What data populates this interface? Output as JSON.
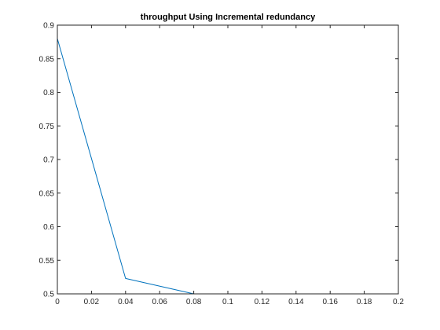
{
  "chart_data": {
    "type": "line",
    "title": "throughput Using Incremental redundancy",
    "xlabel": "",
    "ylabel": "",
    "xlim": [
      0,
      0.2
    ],
    "ylim": [
      0.5,
      0.9
    ],
    "x_ticks": [
      0,
      0.02,
      0.04,
      0.06,
      0.08,
      0.1,
      0.12,
      0.14,
      0.16,
      0.18,
      0.2
    ],
    "x_tick_labels": [
      "0",
      "0.02",
      "0.04",
      "0.06",
      "0.08",
      "0.1",
      "0.12",
      "0.14",
      "0.16",
      "0.18",
      "0.2"
    ],
    "y_ticks": [
      0.5,
      0.55,
      0.6,
      0.65,
      0.7,
      0.75,
      0.8,
      0.85,
      0.9
    ],
    "y_tick_labels": [
      "0.5",
      "0.55",
      "0.6",
      "0.65",
      "0.7",
      "0.75",
      "0.8",
      "0.85",
      "0.9"
    ],
    "grid": false,
    "box": true,
    "series": [
      {
        "x": [
          0,
          0.04,
          0.08,
          0.12,
          0.16,
          0.2
        ],
        "y": [
          0.88,
          0.523,
          0.5,
          0.5,
          0.5,
          0.5
        ],
        "color": "#0072BD"
      }
    ],
    "axis_color": "#262626"
  }
}
